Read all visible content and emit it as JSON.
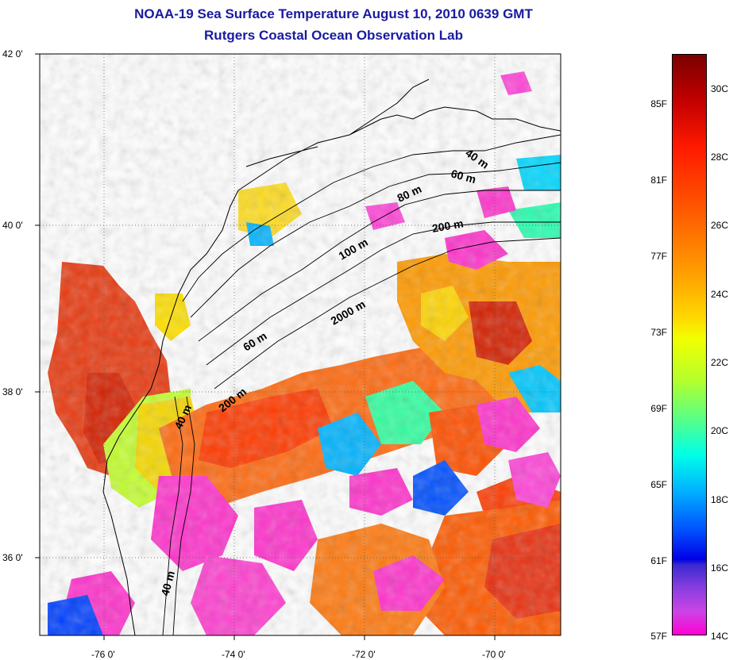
{
  "title": {
    "line1": "NOAA-19 Sea Surface Temperature August 10, 2010 0639 GMT",
    "line2": "Rutgers Coastal Ocean Observation Lab"
  },
  "axes": {
    "lat_labels": [
      "42 0'",
      "40 0'",
      "38 0'",
      "36 0'"
    ],
    "lon_labels": [
      "-76 0'",
      "-74 0'",
      "-72 0'",
      "-70 0'"
    ]
  },
  "isobath_labels": [
    "40 m",
    "60 m",
    "80 m",
    "200 m",
    "100 m",
    "2000 m",
    "60 m",
    "200 m",
    "40 m",
    "40 m"
  ],
  "colorbar": {
    "fahrenheit": [
      "85F",
      "81F",
      "77F",
      "73F",
      "69F",
      "65F",
      "61F",
      "57F"
    ],
    "celsius": [
      "30C",
      "28C",
      "26C",
      "24C",
      "22C",
      "20C",
      "18C",
      "16C",
      "14C"
    ]
  },
  "colors": {
    "title": "#1a1aa0",
    "land": "#ffffff",
    "warm": "#ff5a00",
    "hot": "#d42000",
    "cool": "#ff33cc",
    "mid": "#00c8ff"
  }
}
